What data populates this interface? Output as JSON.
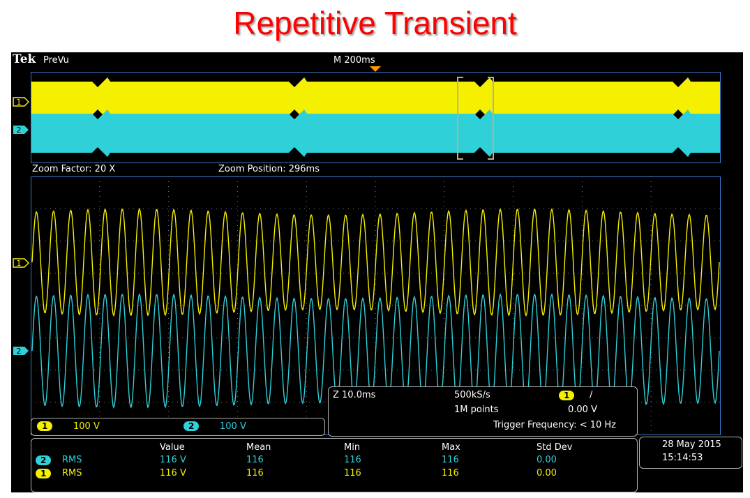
{
  "title": "Repetitive Transient",
  "header": {
    "brand": "Tek",
    "mode": "PreVu",
    "timebase": "M 200ms"
  },
  "zoom": {
    "factor": "Zoom Factor: 20 X",
    "position": "Zoom Position: 296ms"
  },
  "channels": [
    {
      "id": "1",
      "scale": "100 V",
      "color": "#f5f000"
    },
    {
      "id": "2",
      "scale": "100 V",
      "color": "#2fd0d8"
    }
  ],
  "acquisition": {
    "zoom_scale": "Z 10.0ms",
    "sample_rate": "500kS/s",
    "record_length": "1M points",
    "trigger_channel": "1",
    "trigger_slope": "/",
    "trigger_level": "0.00 V",
    "trigger_frequency": "Trigger Frequency: < 10 Hz"
  },
  "measurements": {
    "headers": [
      "Value",
      "Mean",
      "Min",
      "Max",
      "Std Dev"
    ],
    "rows": [
      {
        "channel": "2",
        "type": "RMS",
        "value": "116 V",
        "mean": "116",
        "min": "116",
        "max": "116",
        "std_dev": "0.00"
      },
      {
        "channel": "1",
        "type": "RMS",
        "value": "116 V",
        "mean": "116",
        "min": "116",
        "max": "116",
        "std_dev": "0.00"
      }
    ]
  },
  "datetime": {
    "date": "28 May 2015",
    "time": "15:14:53"
  },
  "colors": {
    "ch1": "#f5f000",
    "ch2": "#2fd0d8",
    "graticule": "#7f7f7f",
    "frame": "#3a78c8",
    "bracket": "#bfae8a",
    "trigger_marker": "#ff9900"
  }
}
